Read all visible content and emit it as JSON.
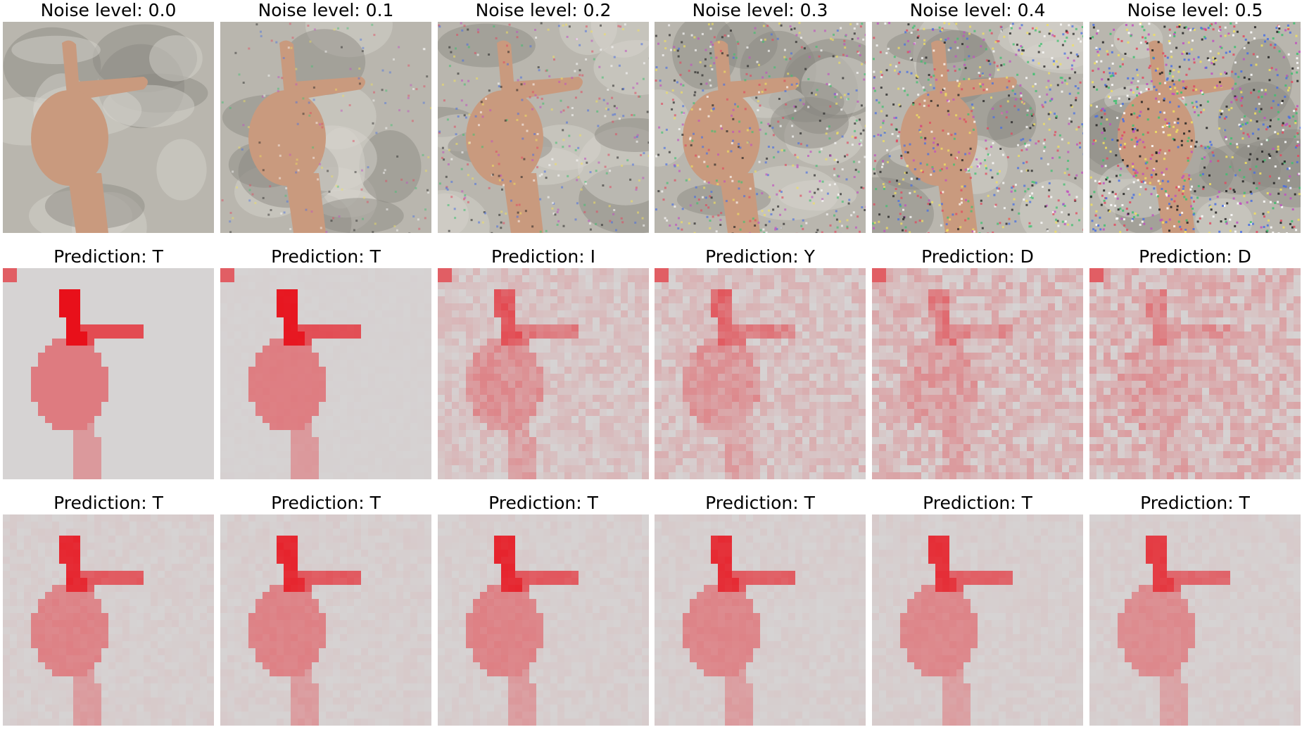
{
  "figure": {
    "rows": [
      {
        "kind": "noisy-image",
        "titles": [
          "Noise level: 0.0",
          "Noise level: 0.1",
          "Noise level: 0.2",
          "Noise level: 0.3",
          "Noise level: 0.4",
          "Noise level: 0.5"
        ],
        "noise_levels": [
          0.0,
          0.1,
          0.2,
          0.3,
          0.4,
          0.5
        ]
      },
      {
        "kind": "saliency-map",
        "titles": [
          "Prediction: T",
          "Prediction: T",
          "Prediction: I",
          "Prediction: Y",
          "Prediction: D",
          "Prediction: D"
        ],
        "intensity": [
          1.0,
          0.95,
          0.55,
          0.45,
          0.3,
          0.22
        ]
      },
      {
        "kind": "saliency-map",
        "titles": [
          "Prediction: T",
          "Prediction: T",
          "Prediction: T",
          "Prediction: T",
          "Prediction: T",
          "Prediction: T"
        ],
        "intensity": [
          0.85,
          0.85,
          0.85,
          0.82,
          0.8,
          0.75
        ]
      }
    ],
    "colors": {
      "photo_background": "#b9b6ae",
      "skin": "#c99a7e",
      "saliency_base": "#d6d3d3",
      "saliency_hot": "#e8101a"
    }
  }
}
